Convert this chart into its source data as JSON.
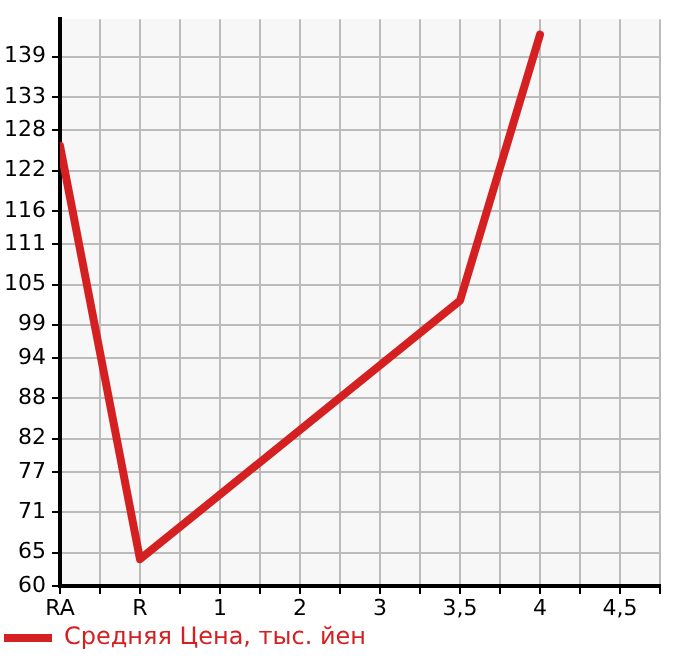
{
  "chart_data": {
    "type": "line",
    "categories": [
      "RA",
      "R",
      "1",
      "2",
      "3",
      "3,5",
      "4",
      "4,5"
    ],
    "series": [
      {
        "name": "Средняя Цена, тыс. йен",
        "color": "#d42020",
        "values": [
          125.7,
          64,
          null,
          null,
          null,
          102.6,
          142.3,
          null
        ]
      }
    ],
    "ylim": [
      60,
      144.6
    ],
    "yticks": [
      60,
      65,
      71,
      77,
      82,
      88,
      94,
      99,
      105,
      111,
      116,
      122,
      128,
      133,
      139
    ],
    "grid": true,
    "legend": "bottom",
    "marker": "none",
    "line_style": "solid"
  }
}
